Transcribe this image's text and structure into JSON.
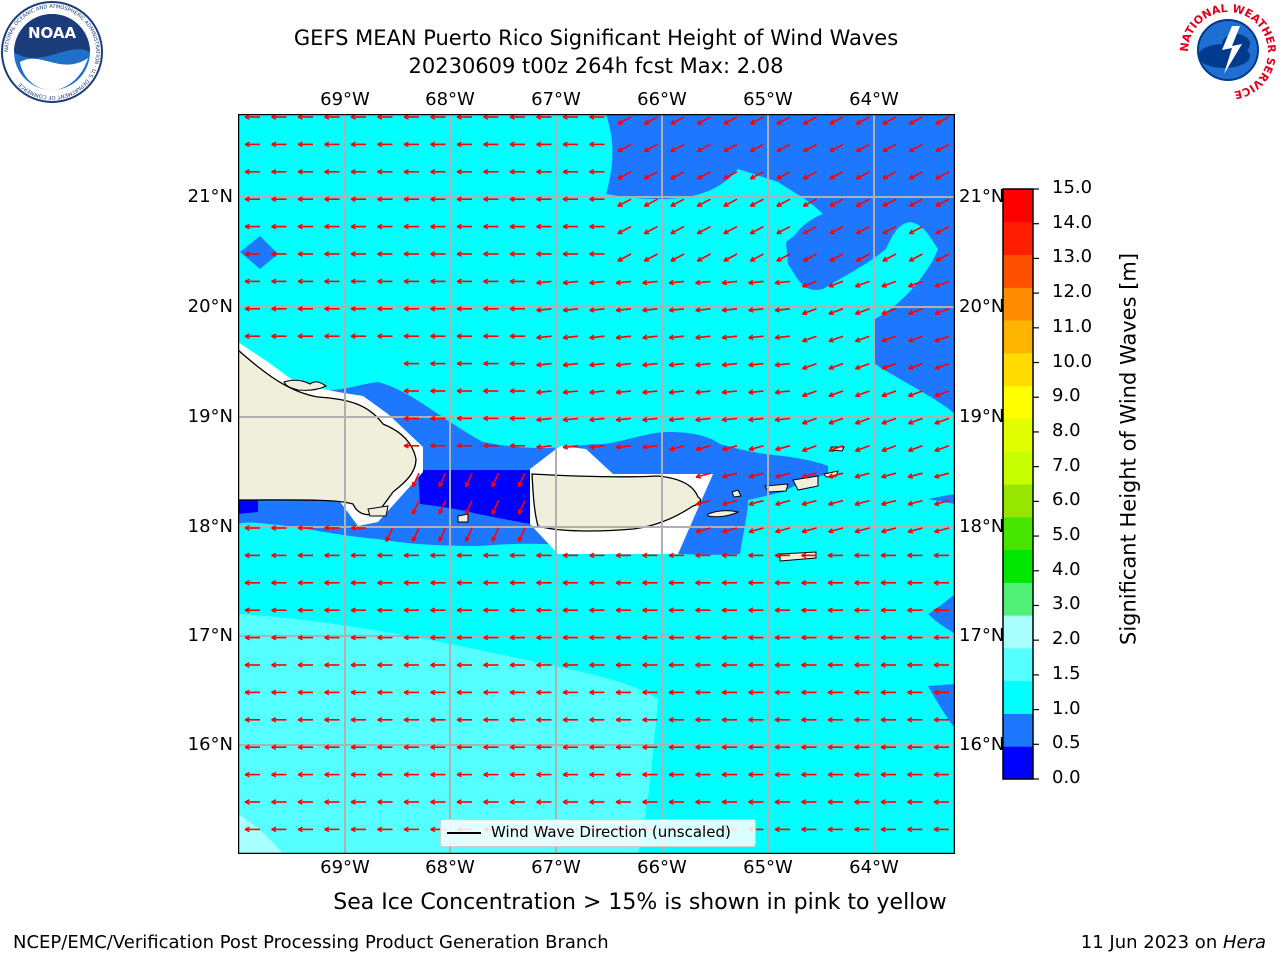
{
  "title_line1": "GEFS MEAN Puerto Rico Significant Height of Wind Waves",
  "title_line2": "20230609 t00z 264h fcst   Max: 2.08",
  "map": {
    "lon_labels": [
      "69°W",
      "68°W",
      "67°W",
      "66°W",
      "65°W",
      "64°W"
    ],
    "lat_labels": [
      "21°N",
      "20°N",
      "19°N",
      "18°N",
      "17°N",
      "16°N"
    ],
    "land_color": "#efefdc",
    "arrow_color": "#ff0000",
    "legend_label": "Wind Wave Direction (unscaled)"
  },
  "colorbar": {
    "label": "Significant Height of Wind Waves [m]",
    "ticks": [
      "15.0",
      "14.0",
      "13.0",
      "12.0",
      "11.0",
      "10.0",
      "9.0",
      "8.0",
      "7.0",
      "6.0",
      "5.0",
      "4.0",
      "3.0",
      "2.0",
      "1.5",
      "1.0",
      "0.5",
      "0.0"
    ],
    "colors": [
      "#0000ff",
      "#1e78ff",
      "#00ffff",
      "#55ffff",
      "#aaffff",
      "#50f078",
      "#00e600",
      "#46e600",
      "#96e600",
      "#c8ff00",
      "#e1ff00",
      "#ffff00",
      "#ffdc00",
      "#ffb400",
      "#ff8c00",
      "#ff5000",
      "#ff1e00",
      "#ff0000"
    ]
  },
  "subtitle": "Sea Ice Concentration > 15% is shown in pink to yellow",
  "footer": {
    "left": "NCEP/EMC/Verification Post Processing Product Generation Branch",
    "right_prefix": "11 Jun 2023 on ",
    "right_host": "Hera"
  },
  "logos": {
    "noaa_text": "NOAA",
    "noaa_ring": "NATIONAL OCEANIC AND ATMOSPHERIC ADMINISTRATION · U.S. DEPARTMENT OF COMMERCE",
    "nws_ring": "NATIONAL WEATHER SERVICE"
  }
}
